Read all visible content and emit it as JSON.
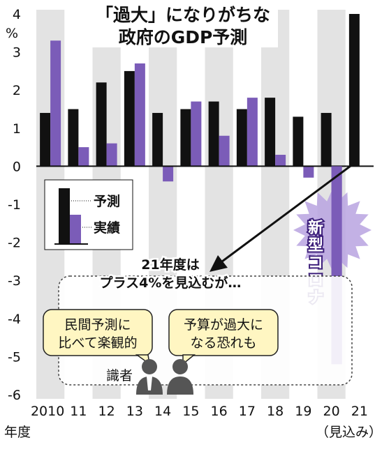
{
  "chart_data": {
    "type": "bar",
    "title": "「過大」になりがちな\n政府のGDP予測",
    "ylabel": "%",
    "xlabel": "年度",
    "x_note": "（見込み）",
    "ylim": [
      -6,
      4
    ],
    "yticks": [
      "4",
      "3",
      "2",
      "1",
      "0",
      "-1",
      "-2",
      "-3",
      "-4",
      "-5",
      "-6"
    ],
    "categories": [
      "2010",
      "11",
      "12",
      "13",
      "14",
      "15",
      "16",
      "17",
      "18",
      "19",
      "20",
      "21"
    ],
    "series": [
      {
        "name": "予測",
        "color": "#111111",
        "values": [
          1.4,
          1.5,
          2.2,
          2.5,
          1.4,
          1.5,
          1.7,
          1.5,
          1.8,
          1.3,
          1.4,
          4.0
        ]
      },
      {
        "name": "実績",
        "color": "#7b5cb8",
        "values": [
          3.3,
          0.5,
          0.6,
          2.7,
          -0.4,
          1.7,
          0.8,
          1.8,
          0.3,
          -0.3,
          -5.2,
          null
        ]
      }
    ],
    "grid": false,
    "legend": "left",
    "annotations": {
      "covid": "新型コロナ",
      "note": "21年度は\nプラス4%を見込むが…",
      "opinion_1": "民間予測に\n比べて楽観的",
      "opinion_2": "予算が過大に\nなる恐れも",
      "experts": "識者"
    },
    "colors": {
      "forecast": "#111111",
      "actual": "#7b5cb8",
      "stripe": "#e3e3e3",
      "burst": "#b9a3e0",
      "bubble": "#fff6c2"
    }
  }
}
